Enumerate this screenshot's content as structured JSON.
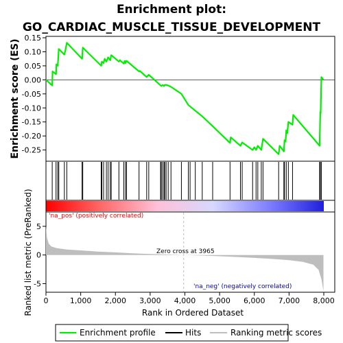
{
  "chart_data": {
    "type": "line",
    "title_lines": [
      "Enrichment plot:",
      "GO_CARDIAC_MUSCLE_TISSUE_DEVELOPMENT"
    ],
    "colors": {
      "enrichment": "#00ee00",
      "hits": "#000000",
      "ranking": "#bebebe",
      "pos_label": "#ff0000",
      "neg_label": "#0000cc",
      "frame": "#000000",
      "zero_cross_line": "#bebebe"
    },
    "es_panel": {
      "ylabel": "Enrichment score (ES)",
      "ylim": [
        -0.29,
        0.155
      ],
      "xlim": [
        0,
        8000
      ],
      "yticks": [
        0.15,
        0.1,
        0.05,
        0.0,
        -0.05,
        -0.1,
        -0.15,
        -0.2,
        -0.25
      ],
      "ytick_labels": [
        "0.15",
        "0.10",
        "0.05",
        "0.00",
        "-0.05",
        "-0.10",
        "-0.15",
        "-0.20",
        "-0.25"
      ],
      "points": [
        [
          0,
          0.0
        ],
        [
          180,
          -0.02
        ],
        [
          190,
          0.03
        ],
        [
          290,
          0.02
        ],
        [
          300,
          0.055
        ],
        [
          340,
          0.05
        ],
        [
          370,
          0.11
        ],
        [
          530,
          0.09
        ],
        [
          560,
          0.105
        ],
        [
          600,
          0.132
        ],
        [
          1040,
          0.075
        ],
        [
          1060,
          0.115
        ],
        [
          1590,
          0.05
        ],
        [
          1610,
          0.065
        ],
        [
          1660,
          0.06
        ],
        [
          1690,
          0.075
        ],
        [
          1740,
          0.065
        ],
        [
          1790,
          0.08
        ],
        [
          1850,
          0.07
        ],
        [
          1880,
          0.088
        ],
        [
          2100,
          0.065
        ],
        [
          2130,
          0.07
        ],
        [
          2240,
          0.058
        ],
        [
          2270,
          0.068
        ],
        [
          2290,
          0.06
        ],
        [
          2320,
          0.068
        ],
        [
          2680,
          0.03
        ],
        [
          2700,
          0.032
        ],
        [
          2900,
          0.01
        ],
        [
          2960,
          0.018
        ],
        [
          3300,
          -0.02
        ],
        [
          3320,
          -0.022
        ],
        [
          3360,
          -0.018
        ],
        [
          3400,
          -0.022
        ],
        [
          3420,
          -0.018
        ],
        [
          3460,
          -0.018
        ],
        [
          3520,
          -0.02
        ],
        [
          3600,
          -0.025
        ],
        [
          3900,
          -0.05
        ],
        [
          4100,
          -0.09
        ],
        [
          4150,
          -0.095
        ],
        [
          4300,
          -0.11
        ],
        [
          4500,
          -0.13
        ],
        [
          4800,
          -0.165
        ],
        [
          5300,
          -0.225
        ],
        [
          5320,
          -0.205
        ],
        [
          5600,
          -0.235
        ],
        [
          5650,
          -0.223
        ],
        [
          5950,
          -0.25
        ],
        [
          6000,
          -0.24
        ],
        [
          6050,
          -0.25
        ],
        [
          6100,
          -0.235
        ],
        [
          6200,
          -0.25
        ],
        [
          6250,
          -0.21
        ],
        [
          6700,
          -0.265
        ],
        [
          6730,
          -0.235
        ],
        [
          6850,
          -0.255
        ],
        [
          6870,
          -0.215
        ],
        [
          6900,
          -0.22
        ],
        [
          6920,
          -0.18
        ],
        [
          6950,
          -0.19
        ],
        [
          6980,
          -0.15
        ],
        [
          7100,
          -0.16
        ],
        [
          7120,
          -0.125
        ],
        [
          7880,
          -0.235
        ],
        [
          7900,
          -0.115
        ],
        [
          7910,
          -0.12
        ],
        [
          7930,
          0.01
        ],
        [
          7990,
          0.0
        ]
      ]
    },
    "hits_panel": {
      "hit_positions": [
        180,
        290,
        340,
        370,
        530,
        600,
        1040,
        1060,
        1590,
        1610,
        1660,
        1740,
        1790,
        1850,
        1880,
        2100,
        2240,
        2290,
        2320,
        2680,
        2900,
        2960,
        3300,
        3320,
        3360,
        3400,
        3420,
        3460,
        3520,
        3600,
        3900,
        4100,
        4150,
        4300,
        4500,
        4800,
        5300,
        5600,
        5650,
        5950,
        6050,
        6100,
        6200,
        6250,
        6700,
        6850,
        6870,
        6920,
        6980,
        7100,
        7880,
        7900,
        7930
      ],
      "heat_gradient": [
        "#ff0000",
        "#ff6a6a",
        "#ffc0d8",
        "#d8d8ff",
        "#8080ff",
        "#2020dd"
      ]
    },
    "rank_panel": {
      "ylabel": "Ranked list metric (PreRanked)",
      "xlabel": "Rank in Ordered Dataset",
      "ylim": [
        -6.5,
        7.5
      ],
      "yticks": [
        5,
        0,
        -5
      ],
      "ytick_labels": [
        "5",
        "0",
        "-5"
      ],
      "xlim": [
        0,
        8000
      ],
      "xticks": [
        0,
        1000,
        2000,
        3000,
        4000,
        5000,
        6000,
        7000,
        8000
      ],
      "xtick_labels": [
        "0",
        "1,000",
        "2,000",
        "3,000",
        "4,000",
        "5,000",
        "6,000",
        "7,000",
        "8,000"
      ],
      "curve": [
        [
          0,
          5.0
        ],
        [
          30,
          3.0
        ],
        [
          80,
          2.0
        ],
        [
          150,
          1.5
        ],
        [
          300,
          1.2
        ],
        [
          600,
          0.95
        ],
        [
          1000,
          0.8
        ],
        [
          1500,
          0.6
        ],
        [
          2000,
          0.45
        ],
        [
          2500,
          0.3
        ],
        [
          3000,
          0.18
        ],
        [
          3500,
          0.08
        ],
        [
          3965,
          0.0
        ],
        [
          4500,
          -0.1
        ],
        [
          5000,
          -0.22
        ],
        [
          5500,
          -0.35
        ],
        [
          6000,
          -0.5
        ],
        [
          6500,
          -0.68
        ],
        [
          7000,
          -0.9
        ],
        [
          7400,
          -1.2
        ],
        [
          7700,
          -1.7
        ],
        [
          7850,
          -2.6
        ],
        [
          7930,
          -4.2
        ],
        [
          7990,
          -6.3
        ]
      ],
      "zero_cross": 3965,
      "zero_cross_text": "Zero cross at 3965",
      "pos_text": "'na_pos' (positively correlated)",
      "neg_text": "'na_neg' (negatively correlated)"
    },
    "legend": {
      "placement": "bottom",
      "entries": [
        "Enrichment profile",
        "Hits",
        "Ranking metric scores"
      ]
    }
  }
}
